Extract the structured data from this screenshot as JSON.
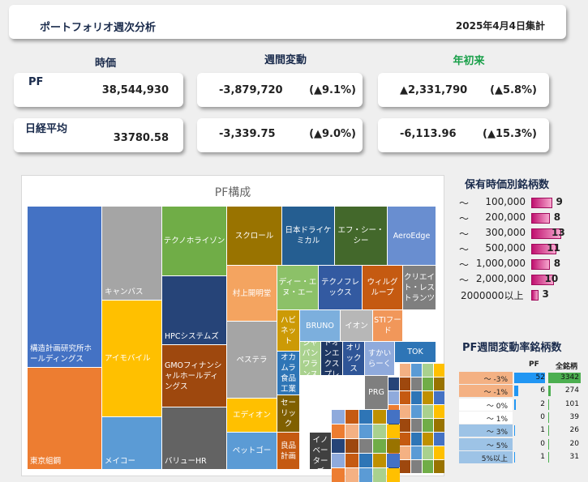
{
  "header": {
    "title": "ポートフォリオ週次分析",
    "date": "2025年4月4日集計"
  },
  "columns": {
    "price": "時価",
    "weekly": "週間変動",
    "ytd": "年初来"
  },
  "colors": {
    "ytd_head": "#1aa04a",
    "navy": "#1a2b4c",
    "hist_bar": "#d81b7f"
  },
  "pf": {
    "label": "PF",
    "value": "38,544,930",
    "weekly": "-3,879,720",
    "weekly_pct": "(▲9.1%)",
    "ytd": "▲2,331,790",
    "ytd_pct": "(▲5.8%)"
  },
  "nikkei": {
    "label": "日経平均",
    "value": "33780.58",
    "weekly": "-3,339.75",
    "weekly_pct": "(▲9.0%)",
    "ytd": "-6,113.96",
    "ytd_pct": "(▲15.3%)"
  },
  "treemap": {
    "title": "PF構成",
    "cells": [
      {
        "label": "構造計画研究所ホールディングス",
        "color": "#4472c4"
      },
      {
        "label": "東京組鋼",
        "color": "#ed7d31"
      },
      {
        "label": "キャンバス",
        "color": "#a5a5a5"
      },
      {
        "label": "アイモバイル",
        "color": "#ffc000"
      },
      {
        "label": "メイコー",
        "color": "#5b9bd5"
      },
      {
        "label": "テクノホライゾン",
        "color": "#70ad47"
      },
      {
        "label": "HPCシステムズ",
        "color": "#264478"
      },
      {
        "label": "GMOフィナンシャルホールディングス",
        "color": "#9e480e"
      },
      {
        "label": "バリューHR",
        "color": "#636363"
      },
      {
        "label": "スクロール",
        "color": "#997300"
      },
      {
        "label": "村上開明堂",
        "color": "#f4a460"
      },
      {
        "label": "ペステラ",
        "color": "#a5a5a5"
      },
      {
        "label": "エディオン",
        "color": "#ffc000"
      },
      {
        "label": "ペットゴー",
        "color": "#5b9bd5"
      },
      {
        "label": "日本ドライケミカル",
        "color": "#255e91"
      },
      {
        "label": "エフ・シー・シー",
        "color": "#43682b"
      },
      {
        "label": "AeroEdge",
        "color": "#698ed0"
      },
      {
        "label": "ディー・エヌ・エー",
        "color": "#8cc168"
      },
      {
        "label": "テクノフレックス",
        "color": "#335aa1"
      },
      {
        "label": "ウィルグループ",
        "color": "#c55a11"
      },
      {
        "label": "クリエイト・レストランツ",
        "color": "#7f7f7f"
      },
      {
        "label": "ハビネット",
        "color": "#cc9a06"
      },
      {
        "label": "BRUNO",
        "color": "#7cafdd"
      },
      {
        "label": "イオン",
        "color": "#b7b7b7"
      },
      {
        "label": "STIフード",
        "color": "#f1975a"
      },
      {
        "label": "オカムラ食品工業",
        "color": "#2e75b6"
      },
      {
        "label": "ジャパンワランス",
        "color": "#a9d18e"
      },
      {
        "label": "ライドオンエクスプレス",
        "color": "#1f3864"
      },
      {
        "label": "オリックス",
        "color": "#2f5597"
      },
      {
        "label": "すかいらーく",
        "color": "#8faadc"
      },
      {
        "label": "TOK",
        "color": "#2e75b6"
      },
      {
        "label": "セーリック",
        "color": "#806000"
      },
      {
        "label": "良品計画",
        "color": "#c55a11"
      },
      {
        "label": "PRG",
        "color": "#7f7f7f"
      },
      {
        "label": "GMOイノベーターズ",
        "color": "#404040"
      }
    ]
  },
  "hist": {
    "title": "保有時価別銘柄数",
    "rows": [
      {
        "label": "100,000",
        "count": "9",
        "frac": 0.69
      },
      {
        "label": "200,000",
        "count": "8",
        "frac": 0.615
      },
      {
        "label": "300,000",
        "count": "13",
        "frac": 1.0
      },
      {
        "label": "500,000",
        "count": "11",
        "frac": 0.846
      },
      {
        "label": "1,000,000",
        "count": "8",
        "frac": 0.615
      },
      {
        "label": "2,000,000",
        "count": "10",
        "frac": 0.77
      },
      {
        "label": "2000000以上",
        "count": "3",
        "frac": 0.23
      }
    ]
  },
  "weekly_dist": {
    "title": "PF週間変動率銘柄数",
    "head_pf": "PF",
    "head_all": "全銘柄",
    "rows": [
      {
        "label": "～ -3%",
        "pf": "52",
        "all": "3342",
        "pf_frac": 1.0,
        "all_frac": 1.0,
        "band": "#f4b183"
      },
      {
        "label": "～ -1%",
        "pf": "6",
        "all": "274",
        "pf_frac": 0.12,
        "all_frac": 0.08,
        "band": "#f4b183"
      },
      {
        "label": "～ 0%",
        "pf": "2",
        "all": "101",
        "pf_frac": 0.04,
        "all_frac": 0.03,
        "band": "#ffffff"
      },
      {
        "label": "～ 1%",
        "pf": "0",
        "all": "39",
        "pf_frac": 0.0,
        "all_frac": 0.012,
        "band": "#ffffff"
      },
      {
        "label": "～ 3%",
        "pf": "1",
        "all": "26",
        "pf_frac": 0.02,
        "all_frac": 0.008,
        "band": "#9dc3e6"
      },
      {
        "label": "～ 5%",
        "pf": "0",
        "all": "20",
        "pf_frac": 0.0,
        "all_frac": 0.006,
        "band": "#9dc3e6"
      },
      {
        "label": "5%以上",
        "pf": "1",
        "all": "31",
        "pf_frac": 0.02,
        "all_frac": 0.009,
        "band": "#9dc3e6"
      }
    ]
  }
}
